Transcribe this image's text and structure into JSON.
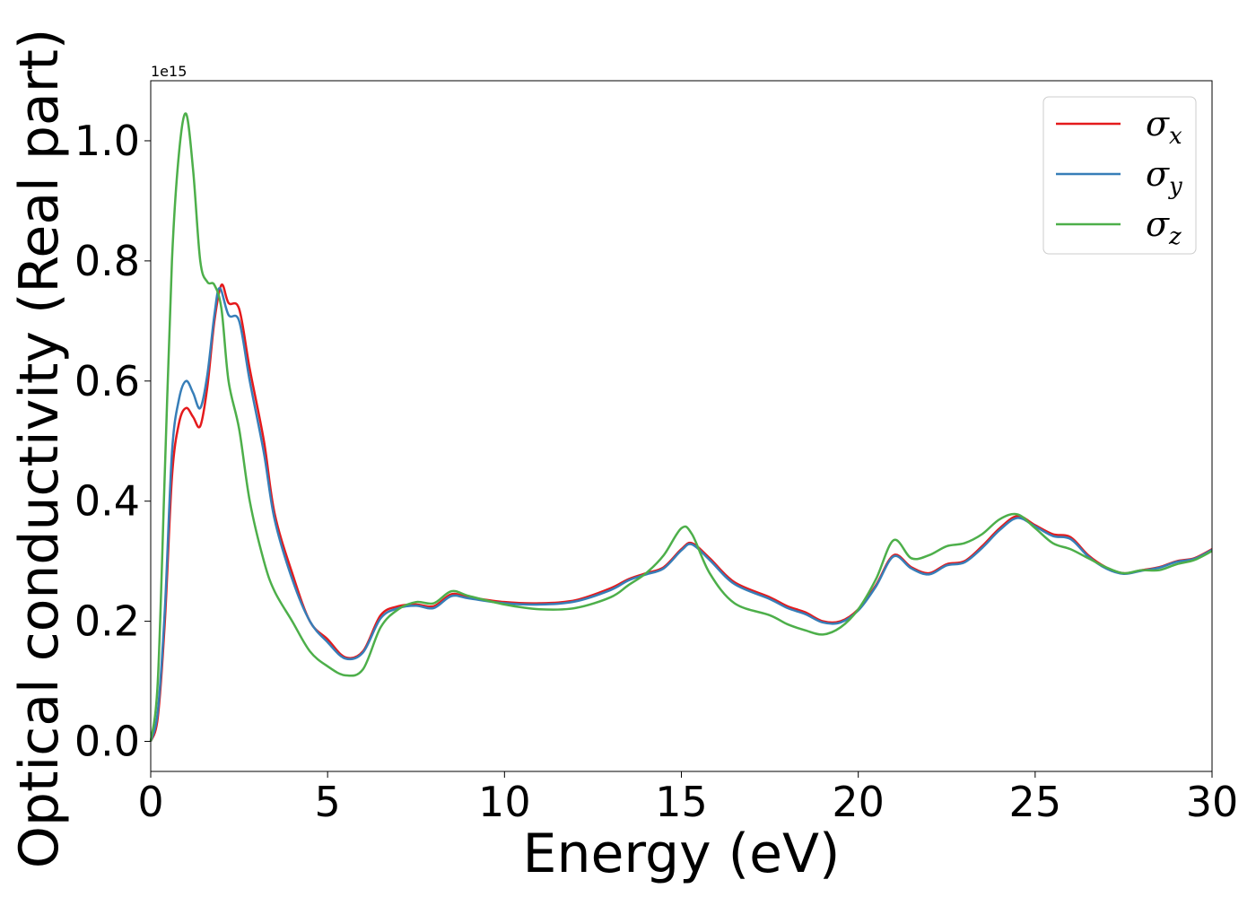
{
  "chart_data": {
    "type": "line",
    "xlabel": "Energy (eV)",
    "ylabel": "Optical conductivity (Real part)",
    "y_offset_label": "1e15",
    "xlim": [
      0,
      30
    ],
    "ylim": [
      -0.05,
      1.1
    ],
    "x_ticks": [
      0,
      5,
      10,
      15,
      20,
      25,
      30
    ],
    "y_ticks": [
      0.0,
      0.2,
      0.4,
      0.6,
      0.8,
      1.0
    ],
    "x_tick_labels": [
      "0",
      "5",
      "10",
      "15",
      "20",
      "25",
      "30"
    ],
    "y_tick_labels": [
      "0.0",
      "0.2",
      "0.4",
      "0.6",
      "0.8",
      "1.0"
    ],
    "grid": false,
    "legend_position": "top-right",
    "series": [
      {
        "name": "σ",
        "subscript": "x",
        "color": "#e41a1c",
        "points": [
          [
            0,
            0
          ],
          [
            0.2,
            0.04
          ],
          [
            0.4,
            0.2
          ],
          [
            0.6,
            0.44
          ],
          [
            0.8,
            0.53
          ],
          [
            1.0,
            0.555
          ],
          [
            1.2,
            0.54
          ],
          [
            1.4,
            0.525
          ],
          [
            1.6,
            0.59
          ],
          [
            1.8,
            0.7
          ],
          [
            2.0,
            0.76
          ],
          [
            2.2,
            0.73
          ],
          [
            2.5,
            0.72
          ],
          [
            2.8,
            0.62
          ],
          [
            3.2,
            0.5
          ],
          [
            3.5,
            0.38
          ],
          [
            4.0,
            0.28
          ],
          [
            4.5,
            0.2
          ],
          [
            5.0,
            0.17
          ],
          [
            5.5,
            0.14
          ],
          [
            6.0,
            0.15
          ],
          [
            6.5,
            0.21
          ],
          [
            7.0,
            0.225
          ],
          [
            7.5,
            0.228
          ],
          [
            8.0,
            0.225
          ],
          [
            8.5,
            0.245
          ],
          [
            9.0,
            0.24
          ],
          [
            10,
            0.232
          ],
          [
            11,
            0.23
          ],
          [
            12,
            0.235
          ],
          [
            13,
            0.255
          ],
          [
            13.5,
            0.27
          ],
          [
            14,
            0.28
          ],
          [
            14.5,
            0.29
          ],
          [
            15,
            0.32
          ],
          [
            15.3,
            0.33
          ],
          [
            15.8,
            0.305
          ],
          [
            16.5,
            0.265
          ],
          [
            17.5,
            0.24
          ],
          [
            18,
            0.225
          ],
          [
            18.5,
            0.215
          ],
          [
            19,
            0.2
          ],
          [
            19.5,
            0.2
          ],
          [
            20,
            0.22
          ],
          [
            20.5,
            0.26
          ],
          [
            21,
            0.31
          ],
          [
            21.5,
            0.29
          ],
          [
            22,
            0.28
          ],
          [
            22.5,
            0.295
          ],
          [
            23,
            0.3
          ],
          [
            23.5,
            0.325
          ],
          [
            24,
            0.355
          ],
          [
            24.5,
            0.375
          ],
          [
            25,
            0.36
          ],
          [
            25.5,
            0.345
          ],
          [
            26,
            0.34
          ],
          [
            26.5,
            0.31
          ],
          [
            27,
            0.29
          ],
          [
            27.5,
            0.28
          ],
          [
            28,
            0.285
          ],
          [
            28.5,
            0.29
          ],
          [
            29,
            0.3
          ],
          [
            29.5,
            0.305
          ],
          [
            30,
            0.32
          ]
        ]
      },
      {
        "name": "σ",
        "subscript": "y",
        "color": "#377eb8",
        "points": [
          [
            0,
            0
          ],
          [
            0.2,
            0.05
          ],
          [
            0.4,
            0.22
          ],
          [
            0.6,
            0.48
          ],
          [
            0.8,
            0.57
          ],
          [
            1.0,
            0.6
          ],
          [
            1.2,
            0.58
          ],
          [
            1.4,
            0.555
          ],
          [
            1.6,
            0.61
          ],
          [
            1.8,
            0.71
          ],
          [
            1.95,
            0.755
          ],
          [
            2.2,
            0.71
          ],
          [
            2.5,
            0.7
          ],
          [
            2.8,
            0.6
          ],
          [
            3.2,
            0.48
          ],
          [
            3.5,
            0.37
          ],
          [
            4.0,
            0.27
          ],
          [
            4.5,
            0.2
          ],
          [
            5.0,
            0.165
          ],
          [
            5.5,
            0.138
          ],
          [
            6.0,
            0.148
          ],
          [
            6.5,
            0.205
          ],
          [
            7.0,
            0.222
          ],
          [
            7.5,
            0.226
          ],
          [
            8.0,
            0.222
          ],
          [
            8.5,
            0.242
          ],
          [
            9.0,
            0.238
          ],
          [
            10,
            0.23
          ],
          [
            11,
            0.228
          ],
          [
            12,
            0.233
          ],
          [
            13,
            0.252
          ],
          [
            13.5,
            0.268
          ],
          [
            14,
            0.278
          ],
          [
            14.5,
            0.288
          ],
          [
            15,
            0.318
          ],
          [
            15.3,
            0.328
          ],
          [
            15.8,
            0.302
          ],
          [
            16.5,
            0.262
          ],
          [
            17.5,
            0.237
          ],
          [
            18,
            0.222
          ],
          [
            18.5,
            0.212
          ],
          [
            19,
            0.198
          ],
          [
            19.5,
            0.198
          ],
          [
            20,
            0.218
          ],
          [
            20.5,
            0.258
          ],
          [
            21,
            0.308
          ],
          [
            21.5,
            0.288
          ],
          [
            22,
            0.278
          ],
          [
            22.5,
            0.293
          ],
          [
            23,
            0.298
          ],
          [
            23.5,
            0.322
          ],
          [
            24,
            0.352
          ],
          [
            24.5,
            0.372
          ],
          [
            25,
            0.358
          ],
          [
            25.5,
            0.342
          ],
          [
            26,
            0.337
          ],
          [
            26.5,
            0.308
          ],
          [
            27,
            0.288
          ],
          [
            27.5,
            0.279
          ],
          [
            28,
            0.284
          ],
          [
            28.5,
            0.289
          ],
          [
            29,
            0.299
          ],
          [
            29.5,
            0.304
          ],
          [
            30,
            0.319
          ]
        ]
      },
      {
        "name": "σ",
        "subscript": "z",
        "color": "#4daf4a",
        "points": [
          [
            0,
            0
          ],
          [
            0.2,
            0.1
          ],
          [
            0.4,
            0.45
          ],
          [
            0.6,
            0.8
          ],
          [
            0.8,
            0.98
          ],
          [
            1.0,
            1.045
          ],
          [
            1.2,
            0.95
          ],
          [
            1.4,
            0.8
          ],
          [
            1.6,
            0.765
          ],
          [
            1.8,
            0.76
          ],
          [
            2.0,
            0.72
          ],
          [
            2.2,
            0.6
          ],
          [
            2.5,
            0.52
          ],
          [
            2.8,
            0.4
          ],
          [
            3.2,
            0.3
          ],
          [
            3.5,
            0.25
          ],
          [
            4.0,
            0.2
          ],
          [
            4.5,
            0.15
          ],
          [
            5.0,
            0.125
          ],
          [
            5.5,
            0.11
          ],
          [
            6.0,
            0.12
          ],
          [
            6.5,
            0.19
          ],
          [
            7.0,
            0.22
          ],
          [
            7.5,
            0.232
          ],
          [
            8.0,
            0.23
          ],
          [
            8.5,
            0.25
          ],
          [
            9.0,
            0.242
          ],
          [
            10,
            0.228
          ],
          [
            11,
            0.22
          ],
          [
            12,
            0.222
          ],
          [
            13,
            0.24
          ],
          [
            13.5,
            0.26
          ],
          [
            14,
            0.28
          ],
          [
            14.5,
            0.31
          ],
          [
            15,
            0.355
          ],
          [
            15.3,
            0.345
          ],
          [
            15.8,
            0.28
          ],
          [
            16.5,
            0.23
          ],
          [
            17.5,
            0.21
          ],
          [
            18,
            0.195
          ],
          [
            18.5,
            0.185
          ],
          [
            19,
            0.178
          ],
          [
            19.5,
            0.19
          ],
          [
            20,
            0.22
          ],
          [
            20.5,
            0.27
          ],
          [
            21,
            0.335
          ],
          [
            21.5,
            0.305
          ],
          [
            22,
            0.31
          ],
          [
            22.5,
            0.325
          ],
          [
            23,
            0.33
          ],
          [
            23.5,
            0.345
          ],
          [
            24,
            0.37
          ],
          [
            24.5,
            0.378
          ],
          [
            25,
            0.355
          ],
          [
            25.5,
            0.33
          ],
          [
            26,
            0.32
          ],
          [
            26.5,
            0.305
          ],
          [
            27,
            0.29
          ],
          [
            27.5,
            0.28
          ],
          [
            28,
            0.285
          ],
          [
            28.5,
            0.285
          ],
          [
            29,
            0.295
          ],
          [
            29.5,
            0.302
          ],
          [
            30,
            0.317
          ]
        ]
      }
    ]
  }
}
